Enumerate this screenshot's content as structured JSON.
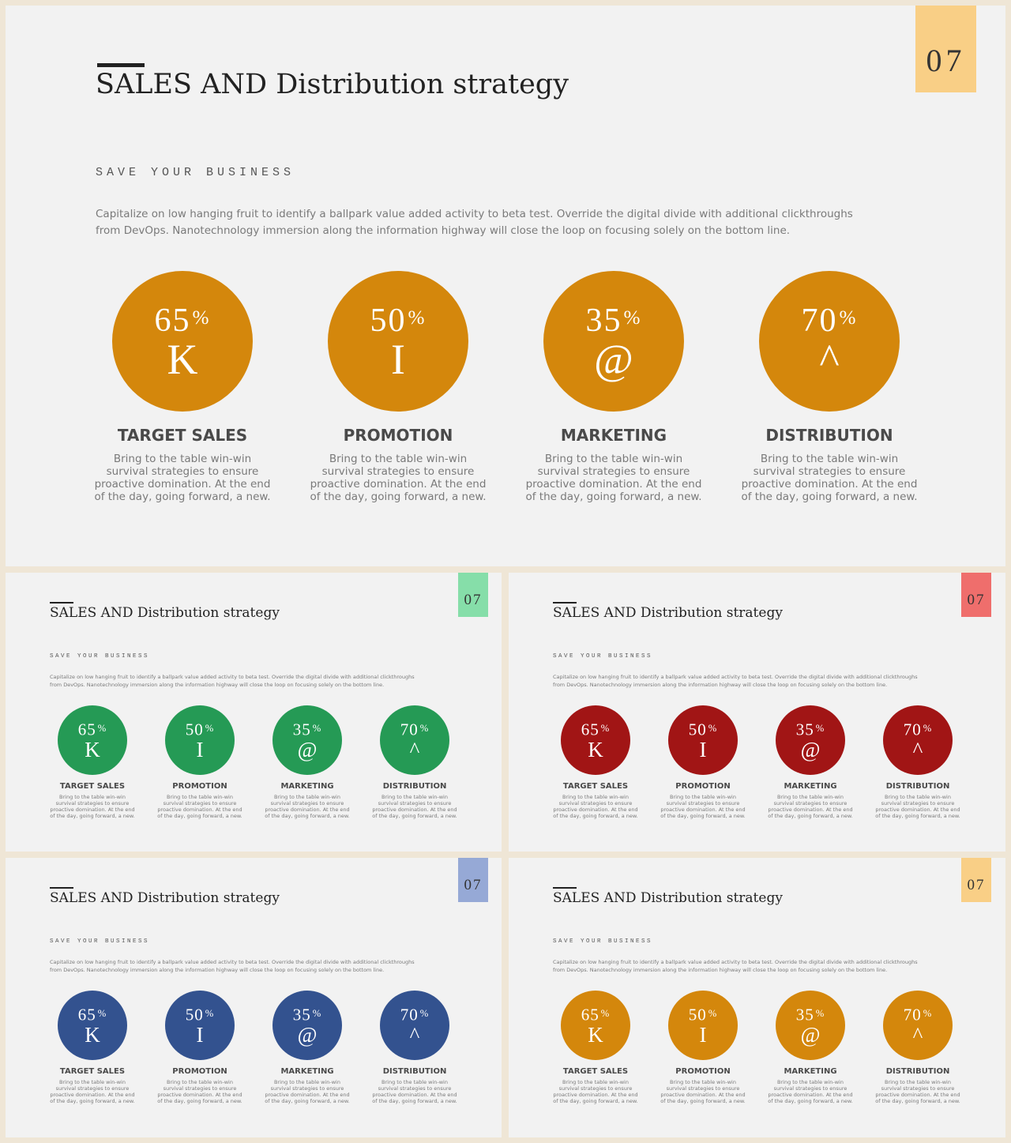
{
  "slide": {
    "number": "07",
    "title": "SALES AND Distribution strategy",
    "subtitle": "SAVE YOUR BUSINESS",
    "body_lines": [
      "Capitalize  on low  hanging  fruit to identify  a ballpark  value  added  activity to beta test.  Override  the digital  divide  with additional  clickthroughs",
      "from DevOps.  Nanotechnology  immersion  along  the information  highway  will close  the loop  on focusing  solely  on the bottom  line."
    ],
    "items": [
      {
        "percent": "65",
        "symbol": "%",
        "glyph": "K",
        "title": "TARGET SALES",
        "desc": [
          "Bring  to the table  win-win",
          "survival  strategies  to ensure",
          "proactive  domination.  At the end",
          "of the day,  going  forward,  a new."
        ]
      },
      {
        "percent": "50",
        "symbol": "%",
        "glyph": "I",
        "title": "PROMOTION",
        "desc": [
          "Bring  to the table  win-win",
          "survival  strategies  to ensure",
          "proactive  domination.  At the end",
          "of the day,  going  forward,  a new."
        ]
      },
      {
        "percent": "35",
        "symbol": "%",
        "glyph": "@",
        "title": "MARKETING",
        "desc": [
          "Bring  to the table  win-win",
          "survival  strategies  to ensure",
          "proactive  domination.  At the end",
          "of the day,  going  forward,  a new."
        ]
      },
      {
        "percent": "70",
        "symbol": "%",
        "glyph": "^",
        "title": "DISTRIBUTION",
        "desc": [
          "Bring  to the table  win-win",
          "survival  strategies  to ensure",
          "proactive  domination.  At the end",
          "of the day,  going  forward,  a new."
        ]
      }
    ]
  },
  "themes": {
    "main": {
      "tab": "#f9cf86",
      "circle": "#d4870c"
    },
    "green": {
      "tab": "#86dea9",
      "circle": "#259a55"
    },
    "red": {
      "tab": "#ef6e6c",
      "circle": "#a11515"
    },
    "blue": {
      "tab": "#96a9d6",
      "circle": "#33528f"
    },
    "orange": {
      "tab": "#f9cf86",
      "circle": "#d4870c"
    }
  }
}
